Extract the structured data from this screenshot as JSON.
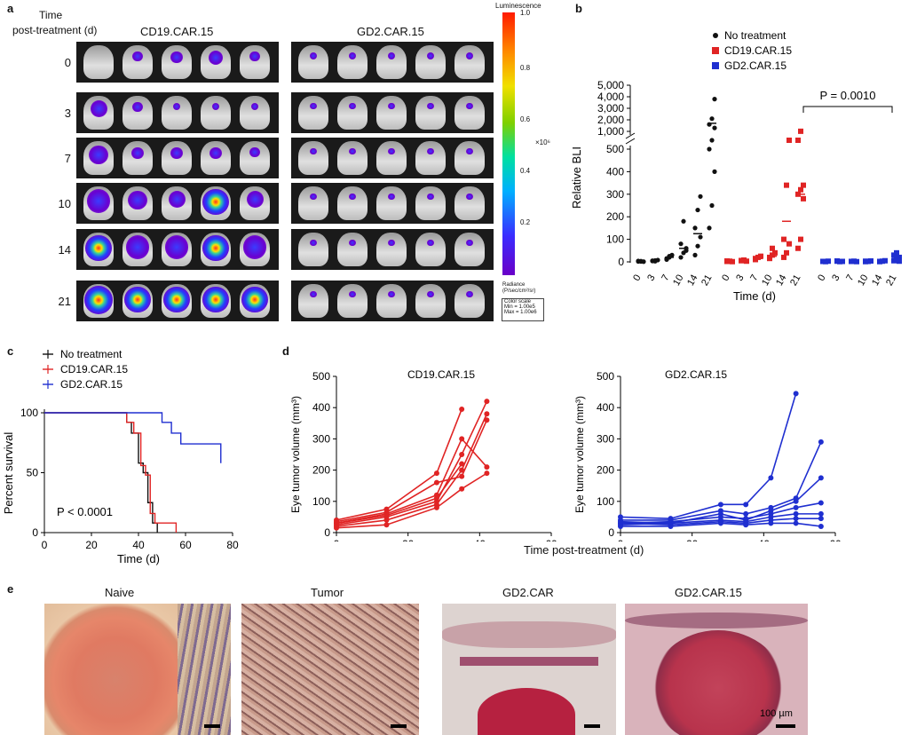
{
  "panels": {
    "a": {
      "label": "a",
      "row_header": [
        "Time",
        "post-treatment (d)"
      ],
      "groups": [
        "CD19.CAR.15",
        "GD2.CAR.15"
      ],
      "rows": [
        "0",
        "3",
        "7",
        "10",
        "14",
        "21"
      ],
      "colorbar": {
        "title": "Luminescence",
        "ticks": [
          "1.0",
          "0.8",
          "0.6",
          "0.4",
          "0.2"
        ],
        "multiplier": "×10⁶",
        "unit_label": "Radiance",
        "unit": "(P/sec/cm²/sr)",
        "scale_title": "Color scale",
        "scale_min": "Min = 1.00e5",
        "scale_max": "Max = 1.00e6"
      }
    },
    "b": {
      "label": "b"
    },
    "c": {
      "label": "c"
    },
    "d": {
      "label": "d",
      "xlabel_shared": "Time post-treatment (d)"
    },
    "e": {
      "label": "e",
      "titles": [
        "Naive",
        "Tumor",
        "GD2.CAR",
        "GD2.CAR.15"
      ],
      "scalebar_label": "100 µm"
    }
  },
  "colors": {
    "black": "#111111",
    "red": "#e02424",
    "blue": "#1f2fd0"
  },
  "chart_data": [
    {
      "id": "b",
      "type": "scatter",
      "ylabel": "Relative BLI",
      "xlabel": "Time (d)",
      "y_upper_ticks": [
        "5,000",
        "4,000",
        "3,000",
        "2,000",
        "1,000"
      ],
      "y_lower_ticks": [
        "500",
        "400",
        "300",
        "200",
        "100",
        "0"
      ],
      "ylim_lower": [
        0,
        500
      ],
      "ylim_upper": [
        1000,
        5000
      ],
      "categories": [
        "0",
        "3",
        "7",
        "10",
        "14",
        "21"
      ],
      "legend": [
        "No treatment",
        "CD19.CAR.15",
        "GD2.CAR.15"
      ],
      "legend_position": "top",
      "annotation": "P = 0.0010",
      "series": [
        {
          "name": "No treatment",
          "color": "#111111",
          "points": {
            "0": [
              2,
              3,
              1,
              4,
              2
            ],
            "3": [
              5,
              3,
              8,
              4,
              6
            ],
            "7": [
              10,
              20,
              30,
              15,
              25
            ],
            "10": [
              20,
              40,
              60,
              80,
              180,
              50
            ],
            "14": [
              30,
              70,
              110,
              150,
              230,
              290
            ],
            "21": [
              150,
              250,
              400,
              500,
              800,
              1300,
              1600,
              2100,
              3800
            ]
          },
          "mean": [
            2,
            5,
            20,
            60,
            125,
            1700
          ]
        },
        {
          "name": "CD19.CAR.15",
          "color": "#e02424",
          "points": {
            "0": [
              2,
              3,
              1,
              4
            ],
            "3": [
              5,
              8,
              3,
              6
            ],
            "7": [
              10,
              20,
              25,
              15
            ],
            "10": [
              15,
              30,
              40,
              20,
              60
            ],
            "14": [
              20,
              40,
              80,
              100,
              340,
              990
            ],
            "21": [
              60,
              100,
              280,
              300,
              320,
              340,
              990,
              1010
            ]
          },
          "mean": [
            2,
            5,
            15,
            25,
            180,
            300
          ]
        },
        {
          "name": "GD2.CAR.15",
          "color": "#1f2fd0",
          "points": {
            "0": [
              2,
              1,
              3,
              2
            ],
            "3": [
              3,
              1,
              2,
              4
            ],
            "7": [
              2,
              3,
              1,
              2
            ],
            "10": [
              3,
              2,
              4,
              1
            ],
            "14": [
              2,
              3,
              5,
              1
            ],
            "21": [
              5,
              10,
              20,
              30,
              40,
              3
            ]
          },
          "mean": [
            2,
            2,
            2,
            2,
            3,
            15
          ]
        }
      ]
    },
    {
      "id": "c",
      "type": "line",
      "xlabel": "Time (d)",
      "ylabel": "Percent survival",
      "xlim": [
        0,
        80
      ],
      "ylim": [
        0,
        100
      ],
      "xticks": [
        "0",
        "20",
        "40",
        "60",
        "80"
      ],
      "yticks": [
        "0",
        "50",
        "100"
      ],
      "annotation": "P < 0.0001",
      "legend_position": "top-left",
      "series": [
        {
          "name": "No treatment",
          "color": "#111111",
          "steps": [
            [
              0,
              100
            ],
            [
              35,
              100
            ],
            [
              35,
              92
            ],
            [
              37,
              92
            ],
            [
              37,
              83
            ],
            [
              40,
              83
            ],
            [
              40,
              58
            ],
            [
              42,
              58
            ],
            [
              42,
              50
            ],
            [
              44,
              50
            ],
            [
              44,
              25
            ],
            [
              46,
              25
            ],
            [
              46,
              8
            ],
            [
              48,
              8
            ],
            [
              48,
              0
            ]
          ]
        },
        {
          "name": "CD19.CAR.15",
          "color": "#e02424",
          "steps": [
            [
              0,
              100
            ],
            [
              35,
              100
            ],
            [
              35,
              92
            ],
            [
              38,
              92
            ],
            [
              38,
              83
            ],
            [
              41,
              83
            ],
            [
              41,
              56
            ],
            [
              43,
              56
            ],
            [
              43,
              48
            ],
            [
              45,
              48
            ],
            [
              45,
              16
            ],
            [
              47,
              16
            ],
            [
              47,
              8
            ],
            [
              56,
              8
            ],
            [
              56,
              0
            ]
          ]
        },
        {
          "name": "GD2.CAR.15",
          "color": "#1f2fd0",
          "steps": [
            [
              0,
              100
            ],
            [
              50,
              100
            ],
            [
              50,
              92
            ],
            [
              54,
              92
            ],
            [
              54,
              83
            ],
            [
              58,
              83
            ],
            [
              58,
              74
            ],
            [
              75,
              74
            ],
            [
              75,
              58
            ]
          ]
        }
      ]
    },
    {
      "id": "d1",
      "type": "line",
      "title": "CD19.CAR.15",
      "ylabel": "Eye tumor volume (mm³)",
      "xlim": [
        0,
        60
      ],
      "ylim": [
        0,
        500
      ],
      "xticks": [
        "0",
        "20",
        "40",
        "60"
      ],
      "yticks": [
        "0",
        "100",
        "200",
        "300",
        "400",
        "500"
      ],
      "color": "#e02424",
      "series": [
        [
          [
            0,
            40
          ],
          [
            14,
            75
          ],
          [
            28,
            190
          ],
          [
            35,
            395
          ]
        ],
        [
          [
            0,
            30
          ],
          [
            14,
            60
          ],
          [
            28,
            120
          ],
          [
            35,
            300
          ],
          [
            42,
            210
          ]
        ],
        [
          [
            0,
            25
          ],
          [
            14,
            50
          ],
          [
            28,
            100
          ],
          [
            35,
            250
          ],
          [
            42,
            420
          ]
        ],
        [
          [
            0,
            20
          ],
          [
            14,
            40
          ],
          [
            28,
            90
          ],
          [
            35,
            200
          ],
          [
            42,
            380
          ]
        ],
        [
          [
            0,
            35
          ],
          [
            14,
            65
          ],
          [
            28,
            160
          ],
          [
            35,
            180
          ],
          [
            42,
            360
          ]
        ],
        [
          [
            0,
            15
          ],
          [
            14,
            25
          ],
          [
            28,
            80
          ],
          [
            35,
            140
          ],
          [
            42,
            190
          ]
        ],
        [
          [
            0,
            30
          ],
          [
            14,
            55
          ],
          [
            28,
            110
          ],
          [
            35,
            220
          ]
        ]
      ]
    },
    {
      "id": "d2",
      "type": "line",
      "title": "GD2.CAR.15",
      "ylabel": "Eye tumor volume (mm³)",
      "xlim": [
        0,
        60
      ],
      "ylim": [
        0,
        500
      ],
      "xticks": [
        "0",
        "20",
        "40",
        "60"
      ],
      "yticks": [
        "0",
        "100",
        "200",
        "300",
        "400",
        "500"
      ],
      "color": "#1f2fd0",
      "series": [
        [
          [
            0,
            50
          ],
          [
            14,
            45
          ],
          [
            28,
            90
          ],
          [
            35,
            90
          ],
          [
            42,
            175
          ],
          [
            49,
            445
          ]
        ],
        [
          [
            0,
            40
          ],
          [
            14,
            40
          ],
          [
            28,
            70
          ],
          [
            35,
            60
          ],
          [
            42,
            80
          ],
          [
            49,
            110
          ],
          [
            56,
            290
          ]
        ],
        [
          [
            0,
            35
          ],
          [
            14,
            30
          ],
          [
            28,
            60
          ],
          [
            35,
            40
          ],
          [
            42,
            70
          ],
          [
            49,
            100
          ],
          [
            56,
            175
          ]
        ],
        [
          [
            0,
            30
          ],
          [
            14,
            35
          ],
          [
            28,
            50
          ],
          [
            35,
            45
          ],
          [
            42,
            60
          ],
          [
            49,
            80
          ],
          [
            56,
            95
          ]
        ],
        [
          [
            0,
            25
          ],
          [
            14,
            30
          ],
          [
            28,
            40
          ],
          [
            35,
            35
          ],
          [
            42,
            50
          ],
          [
            49,
            60
          ],
          [
            56,
            60
          ]
        ],
        [
          [
            0,
            30
          ],
          [
            14,
            25
          ],
          [
            28,
            35
          ],
          [
            35,
            30
          ],
          [
            42,
            40
          ],
          [
            49,
            45
          ],
          [
            56,
            45
          ]
        ],
        [
          [
            0,
            20
          ],
          [
            14,
            20
          ],
          [
            28,
            30
          ],
          [
            35,
            25
          ],
          [
            42,
            30
          ],
          [
            49,
            30
          ],
          [
            56,
            20
          ]
        ]
      ]
    }
  ]
}
